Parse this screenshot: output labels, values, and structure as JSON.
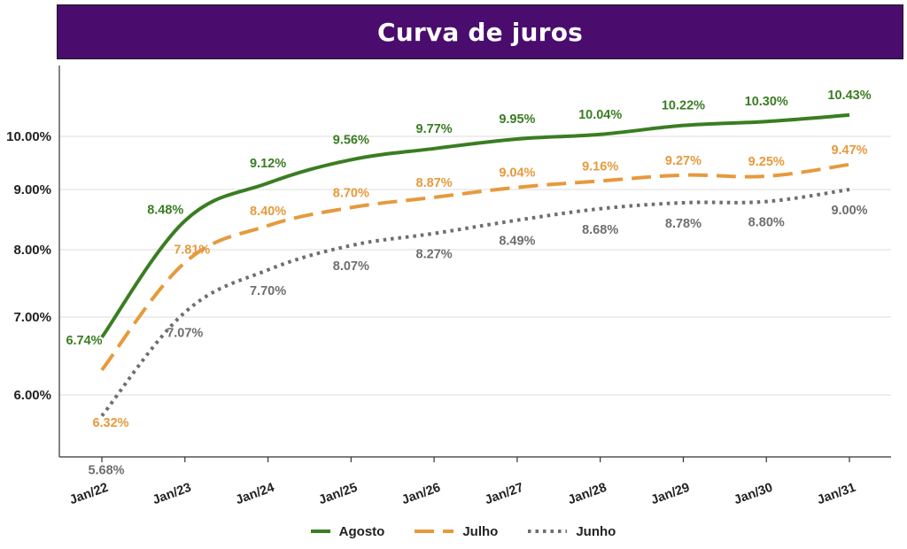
{
  "page": {
    "title": "Curva de juros",
    "banner_color": "#4a0d6e"
  },
  "chart_data": {
    "type": "line",
    "title": "Curva de juros",
    "xlabel": "",
    "ylabel": "",
    "categories": [
      "Jan/22",
      "Jan/23",
      "Jan/24",
      "Jan/25",
      "Jan/26",
      "Jan/27",
      "Jan/28",
      "Jan/29",
      "Jan/30",
      "Jan/31"
    ],
    "yticks": [
      "6.00%",
      "7.00%",
      "8.00%",
      "9.00%",
      "10.00%"
    ],
    "ytick_values": [
      6.0,
      7.0,
      8.0,
      9.0,
      10.0
    ],
    "ylim": [
      5.0,
      11.0
    ],
    "grid": "horizontal",
    "legend_position": "bottom",
    "series": [
      {
        "name": "Agosto",
        "color": "#3a7d22",
        "style": "solid",
        "values": [
          6.74,
          8.48,
          9.12,
          9.56,
          9.77,
          9.95,
          10.04,
          10.22,
          10.3,
          10.43
        ],
        "labels": [
          "6.74%",
          "8.48%",
          "9.12%",
          "9.56%",
          "9.77%",
          "9.95%",
          "10.04%",
          "10.22%",
          "10.30%",
          "10.43%"
        ]
      },
      {
        "name": "Julho",
        "color": "#e69a3c",
        "style": "dashed",
        "values": [
          6.32,
          7.81,
          8.4,
          8.7,
          8.87,
          9.04,
          9.16,
          9.27,
          9.25,
          9.47
        ],
        "labels": [
          "6.32%",
          "7.81%",
          "8.40%",
          "8.70%",
          "8.87%",
          "9.04%",
          "9.16%",
          "9.27%",
          "9.25%",
          "9.47%"
        ]
      },
      {
        "name": "Junho",
        "color": "#6e6e6e",
        "style": "dotted",
        "values": [
          5.68,
          7.07,
          7.7,
          8.07,
          8.27,
          8.49,
          8.68,
          8.78,
          8.8,
          9.0
        ],
        "labels": [
          "5.68%",
          "7.07%",
          "7.70%",
          "8.07%",
          "8.27%",
          "8.49%",
          "8.68%",
          "8.78%",
          "8.80%",
          "9.00%"
        ]
      }
    ]
  }
}
